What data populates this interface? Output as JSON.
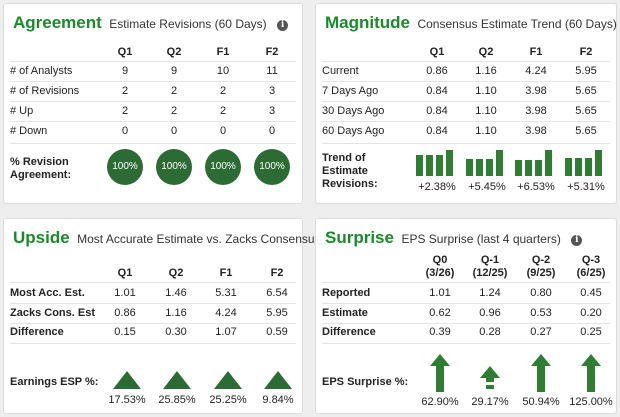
{
  "agreement": {
    "title": "Agreement",
    "subtitle": "Estimate Revisions (60 Days)",
    "columns": [
      "Q1",
      "Q2",
      "F1",
      "F2"
    ],
    "rows": [
      {
        "label": "# of Analysts",
        "values": [
          "9",
          "9",
          "10",
          "11"
        ]
      },
      {
        "label": "# of Revisions",
        "values": [
          "2",
          "2",
          "2",
          "3"
        ]
      },
      {
        "label": "# Up",
        "values": [
          "2",
          "2",
          "2",
          "3"
        ]
      },
      {
        "label": "# Down",
        "values": [
          "0",
          "0",
          "0",
          "0"
        ]
      }
    ],
    "revision_label_line1": "% Revision",
    "revision_label_line2": "Agreement:",
    "revision_values": [
      "100%",
      "100%",
      "100%",
      "100%"
    ]
  },
  "magnitude": {
    "title": "Magnitude",
    "subtitle": "Consensus Estimate Trend (60 Days)",
    "columns": [
      "Q1",
      "Q2",
      "F1",
      "F2"
    ],
    "rows": [
      {
        "label": "Current",
        "values": [
          "0.86",
          "1.16",
          "4.24",
          "5.95"
        ]
      },
      {
        "label": "7 Days Ago",
        "values": [
          "0.84",
          "1.10",
          "3.98",
          "5.65"
        ]
      },
      {
        "label": "30 Days Ago",
        "values": [
          "0.84",
          "1.10",
          "3.98",
          "5.65"
        ]
      },
      {
        "label": "60 Days Ago",
        "values": [
          "0.84",
          "1.10",
          "3.98",
          "5.65"
        ]
      }
    ],
    "trend_label_line1": "Trend of",
    "trend_label_line2": "Estimate",
    "trend_label_line3": "Revisions:",
    "trend_values": [
      "+2.38%",
      "+5.45%",
      "+6.53%",
      "+5.31%"
    ]
  },
  "upside": {
    "title": "Upside",
    "subtitle": "Most Accurate Estimate vs. Zacks Consensus",
    "columns": [
      "Q1",
      "Q2",
      "F1",
      "F2"
    ],
    "rows": [
      {
        "label": "Most Acc. Est.",
        "values": [
          "1.01",
          "1.46",
          "5.31",
          "6.54"
        ]
      },
      {
        "label": "Zacks Cons. Est",
        "values": [
          "0.86",
          "1.16",
          "4.24",
          "5.95"
        ]
      },
      {
        "label": "Difference",
        "values": [
          "0.15",
          "0.30",
          "1.07",
          "0.59"
        ]
      }
    ],
    "esp_label": "Earnings ESP %:",
    "esp_values": [
      "17.53%",
      "25.85%",
      "25.25%",
      "9.84%"
    ]
  },
  "surprise": {
    "title": "Surprise",
    "subtitle": "EPS Surprise (last 4 quarters)",
    "columns": [
      {
        "name": "Q0",
        "date": "(3/26)"
      },
      {
        "name": "Q-1",
        "date": "(12/25)"
      },
      {
        "name": "Q-2",
        "date": "(9/25)"
      },
      {
        "name": "Q-3",
        "date": "(6/25)"
      }
    ],
    "rows": [
      {
        "label": "Reported",
        "values": [
          "1.01",
          "1.24",
          "0.80",
          "0.45"
        ]
      },
      {
        "label": "Estimate",
        "values": [
          "0.62",
          "0.96",
          "0.53",
          "0.20"
        ]
      },
      {
        "label": "Difference",
        "values": [
          "0.39",
          "0.28",
          "0.27",
          "0.25"
        ]
      }
    ],
    "eps_label": "EPS Surprise %:",
    "eps_values": [
      "62.90%",
      "29.17%",
      "50.94%",
      "125.00%"
    ]
  },
  "info_icon": "info-icon",
  "colors": {
    "title_green": "#1a8a2b",
    "badge_green": "#2d6b34",
    "bar_green": "#2e7d32"
  }
}
